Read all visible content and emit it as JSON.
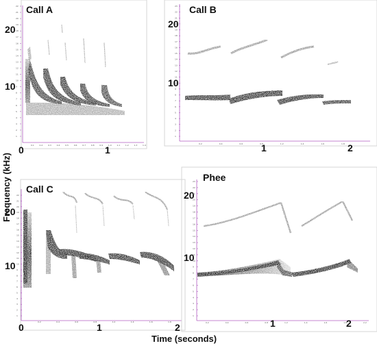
{
  "figure": {
    "y_axis_title": "Frequency (kHz)",
    "x_axis_title": "Time (seconds)"
  },
  "panels": [
    {
      "title": "Call A",
      "y_labels": [
        "20",
        "10"
      ],
      "x_labels": [
        "0",
        "1"
      ],
      "tiny_y": [
        "22",
        "21",
        "20",
        "19",
        "18",
        "17",
        "16",
        "15",
        "14",
        "13",
        "12",
        "11",
        "10",
        "9",
        "8",
        "7",
        "6",
        "5",
        "4",
        "3",
        "2",
        "1"
      ],
      "tiny_x": [
        "0.1",
        "0.2",
        "0.3",
        "0.4",
        "0.5",
        "0.6",
        "0.7",
        "0.8",
        "0.9",
        "1.0",
        "1.1",
        "1.2",
        "1.3",
        "1.4"
      ]
    },
    {
      "title": "Call B",
      "y_labels": [
        "20",
        "10"
      ],
      "x_labels": [
        "1",
        "2"
      ],
      "tiny_y": [
        "23",
        "22",
        "21",
        "20",
        "19",
        "18",
        "17",
        "16",
        "15",
        "14",
        "13",
        "12",
        "11",
        "10",
        "9",
        "8",
        "7",
        "6",
        "5",
        "4",
        "3",
        "2",
        "1"
      ],
      "tiny_x": [
        "0.2",
        "0.4",
        "0.6",
        "0.8",
        "1.2",
        "1.4",
        "1.6",
        "1.8"
      ]
    },
    {
      "title": "Call C",
      "y_labels": [
        "20",
        "10"
      ],
      "x_labels": [
        "0",
        "1",
        "2"
      ],
      "tiny_y": [
        "22",
        "21",
        "20",
        "19",
        "18",
        "17",
        "16",
        "15",
        "14",
        "13",
        "12",
        "11",
        "10",
        "9",
        "8",
        "7",
        "6",
        "5",
        "4",
        "3",
        "2",
        "1"
      ],
      "tiny_x": [
        "0.2",
        "0.4",
        "0.6",
        "0.8",
        "1.2",
        "1.4",
        "1.6",
        "1.8"
      ]
    },
    {
      "title": "Phee",
      "y_labels": [
        "20",
        "10"
      ],
      "x_labels": [
        "1",
        "2"
      ],
      "tiny_y": [
        "23",
        "22",
        "21",
        "20",
        "19",
        "18",
        "17",
        "16",
        "15",
        "14",
        "13",
        "12",
        "11",
        "10",
        "9",
        "8",
        "7",
        "6",
        "5",
        "4",
        "3",
        "2",
        "1"
      ],
      "tiny_x": [
        "0.2",
        "0.4",
        "0.6",
        "0.8",
        "1.2",
        "1.4",
        "1.6",
        "1.8",
        "2.2"
      ]
    }
  ],
  "colors": {
    "ink": "#1a1a1a",
    "axis": "#b05cc0",
    "frame": "#d6d6d6"
  }
}
